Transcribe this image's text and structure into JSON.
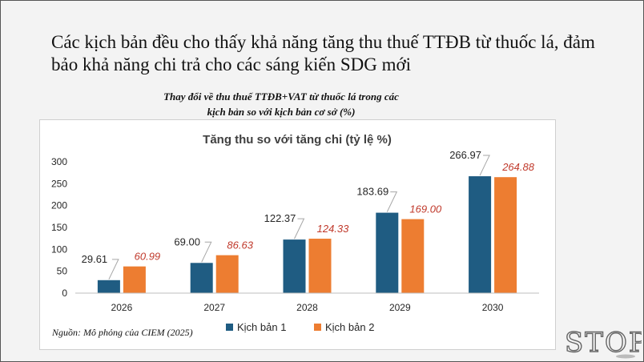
{
  "slide": {
    "title": "Các kịch bản đều cho thấy khả năng tăng thu thuế TTĐB từ thuốc lá, đảm bảo khả năng chi trả cho các sáng kiến SDG mới",
    "subtitle_line1": "Thay đổi về thu thuế TTĐB+VAT từ thuốc lá trong các",
    "subtitle_line2": "kịch bản so với kịch bản cơ sở (%)",
    "source": "Nguồn: Mô phỏng của CIEM (2025)",
    "logo_text": "STOP"
  },
  "chart_data": {
    "type": "bar",
    "title": "Tăng thu so với tăng chi (tỷ lệ %)",
    "categories": [
      "2026",
      "2027",
      "2028",
      "2029",
      "2030"
    ],
    "series": [
      {
        "name": "Kịch bản 1",
        "values": [
          29.61,
          69.0,
          122.37,
          183.69,
          266.97
        ],
        "labels": [
          "29.61",
          "69.00",
          "122.37",
          "183.69",
          "266.97"
        ],
        "color": "#1f5c82"
      },
      {
        "name": "Kịch bản 2",
        "values": [
          60.99,
          86.63,
          124.33,
          169.0,
          264.88
        ],
        "labels": [
          "60.99",
          "86.63",
          "124.33",
          "169.00",
          "264.88"
        ],
        "color": "#ed7d31"
      }
    ],
    "ylim": [
      0,
      300
    ],
    "yticks": [
      "0",
      "50",
      "100",
      "150",
      "200",
      "250",
      "300"
    ],
    "grid": false,
    "legend_position": "bottom"
  }
}
